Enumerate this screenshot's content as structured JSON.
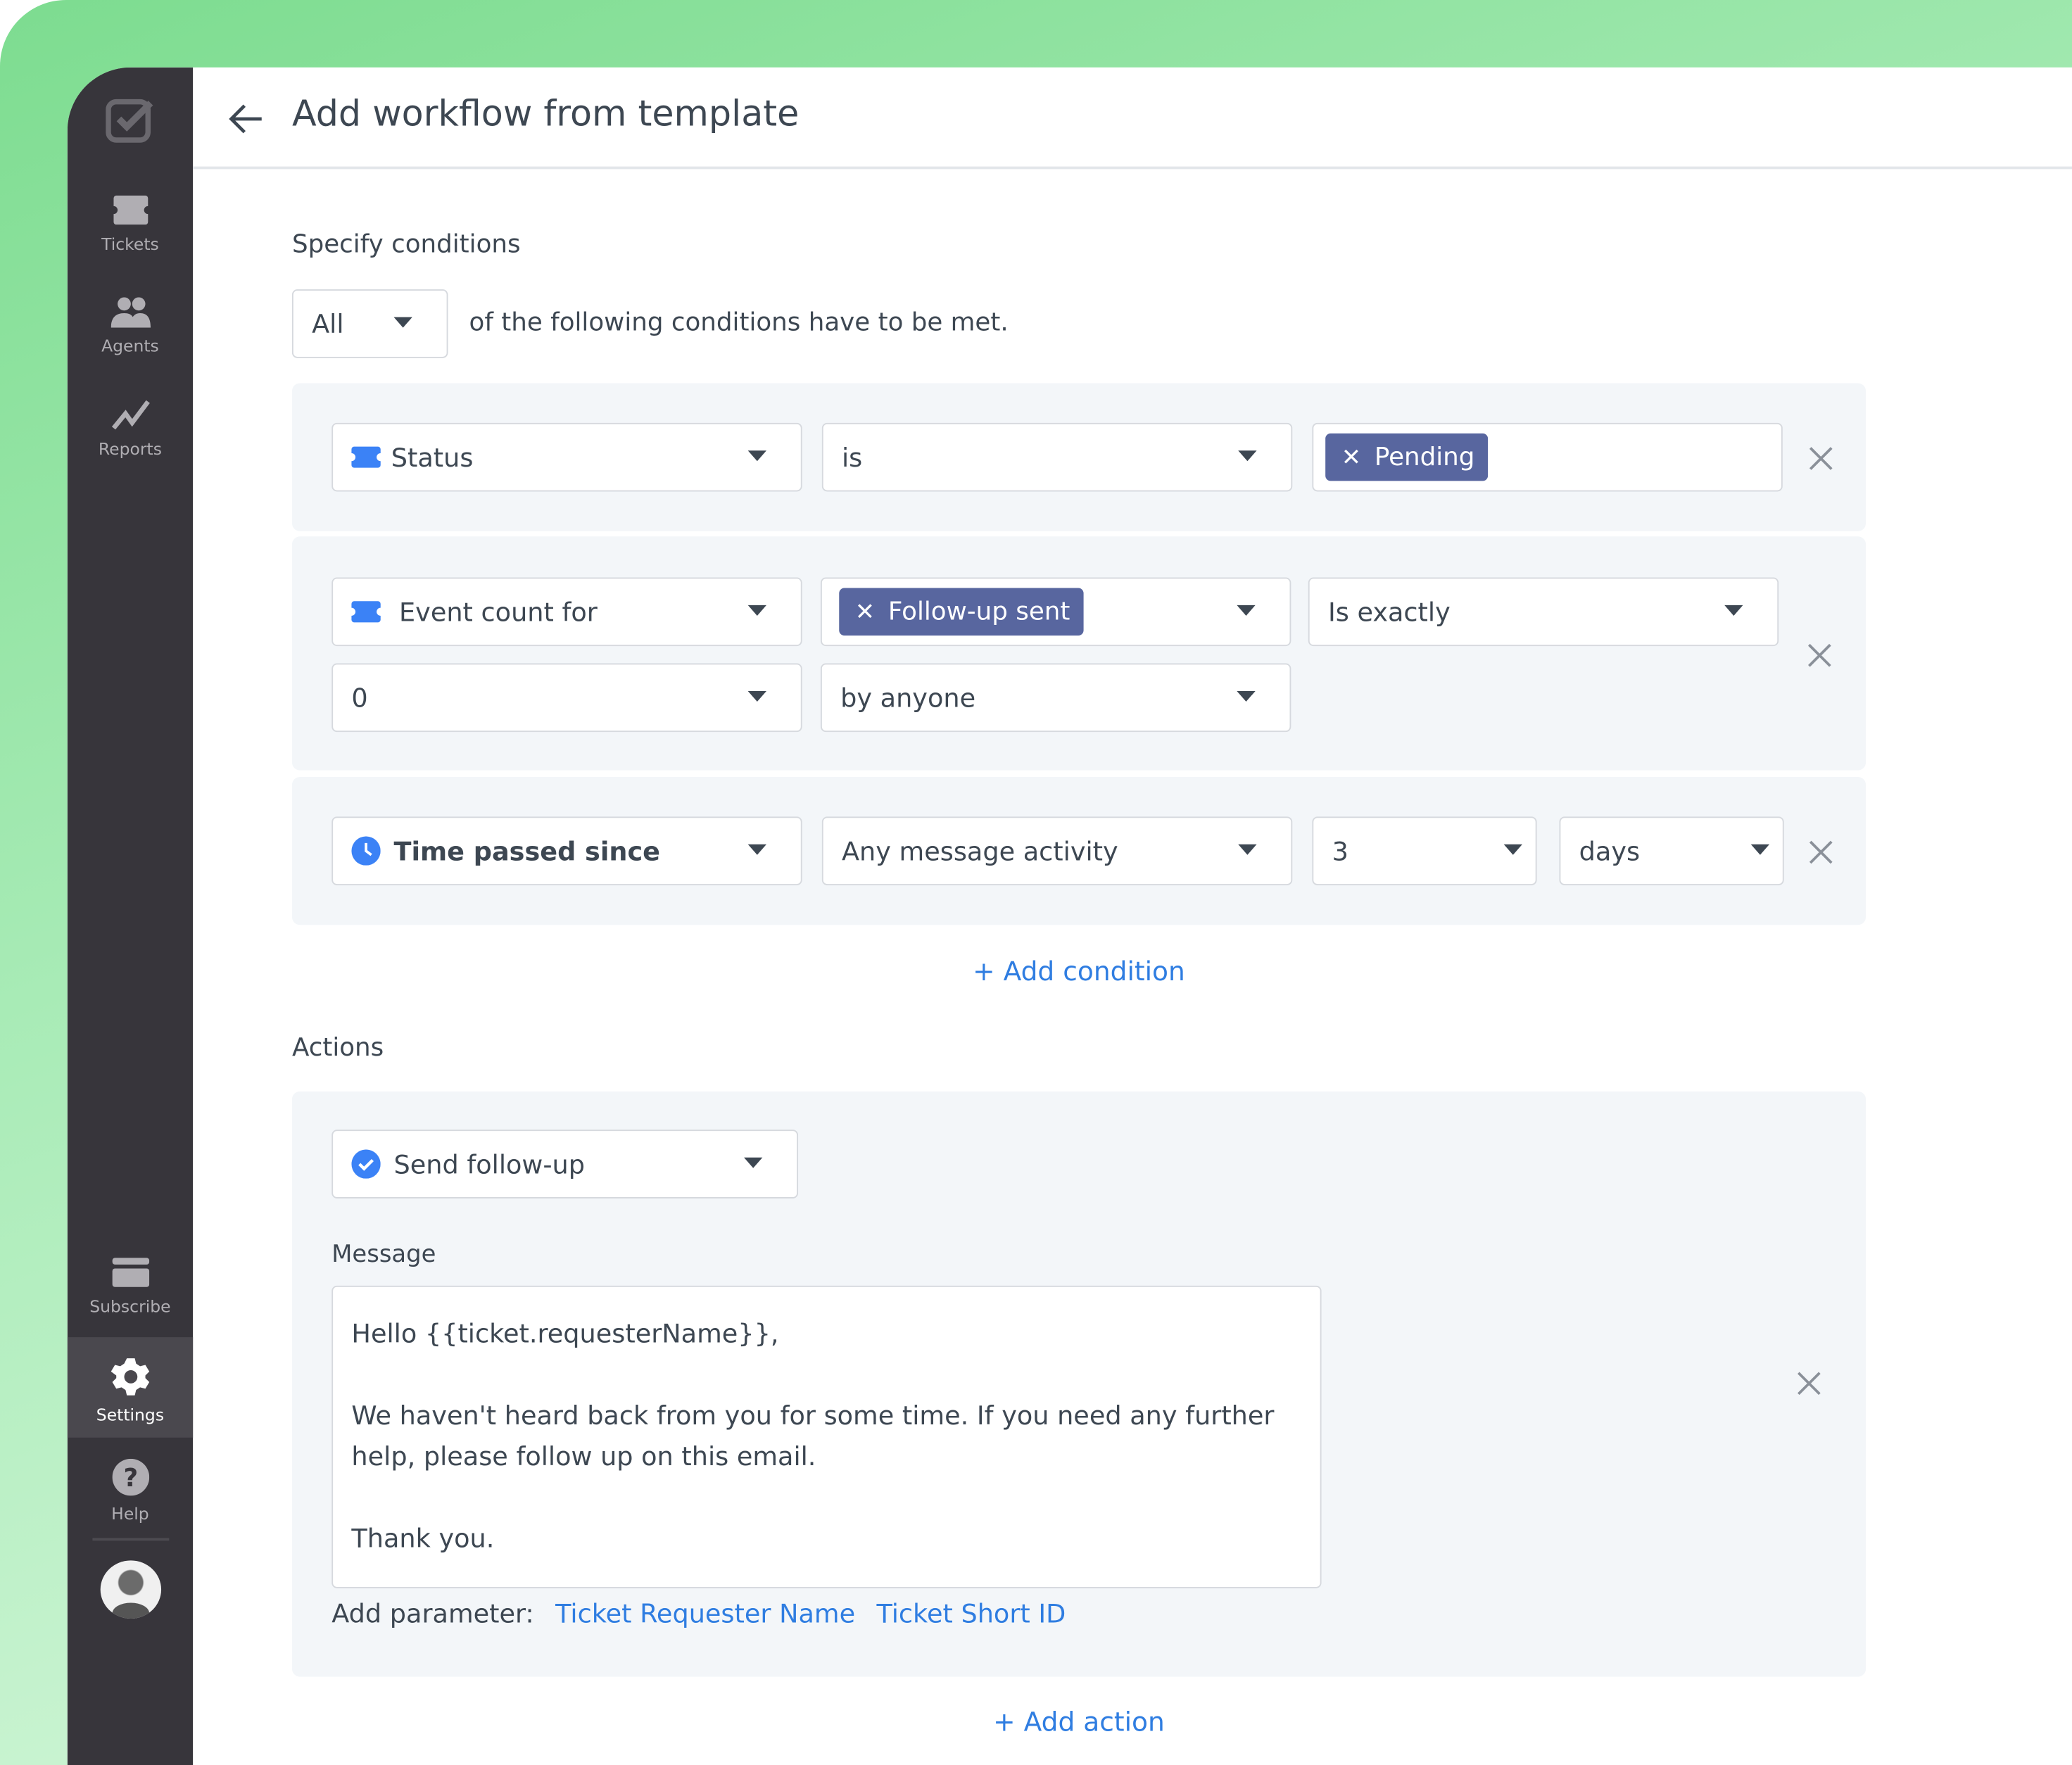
{
  "sidebar": {
    "items": [
      {
        "label": "Tickets",
        "icon": "ticket-icon"
      },
      {
        "label": "Agents",
        "icon": "agents-icon"
      },
      {
        "label": "Reports",
        "icon": "chart-line-icon"
      },
      {
        "label": "Subscribe",
        "icon": "credit-card-icon"
      },
      {
        "label": "Settings",
        "icon": "gear-icon",
        "active": true
      },
      {
        "label": "Help",
        "icon": "help-icon"
      }
    ]
  },
  "header": {
    "title": "Add workflow from template"
  },
  "conditions": {
    "heading": "Specify conditions",
    "match_select": "All",
    "match_text": "of the following conditions have to be met.",
    "rows": [
      {
        "field": "Status",
        "operator": "is",
        "value_tag": "Pending"
      },
      {
        "field": "Event count for",
        "event_tag": "Follow-up sent",
        "comparison": "Is exactly",
        "count": "0",
        "actor": "by anyone"
      },
      {
        "field": "Time passed since",
        "event": "Any message activity",
        "amount": "3",
        "unit": "days"
      }
    ],
    "add_label": "+ Add condition"
  },
  "actions": {
    "heading": "Actions",
    "action_select": "Send follow-up",
    "message_label": "Message",
    "message": "Hello {{ticket.requesterName}},\n\nWe haven't heard back from you for some time. If you need any further\nhelp, please follow up on this email.\n\nThank you.",
    "param_label": "Add parameter:",
    "params": [
      "Ticket Requester Name",
      "Ticket Short ID"
    ],
    "add_label": "+ Add action"
  },
  "colors": {
    "accent": "#2f7de1",
    "tag": "#58669f",
    "sidebar": "#37353b",
    "panel": "#f3f6f9"
  }
}
